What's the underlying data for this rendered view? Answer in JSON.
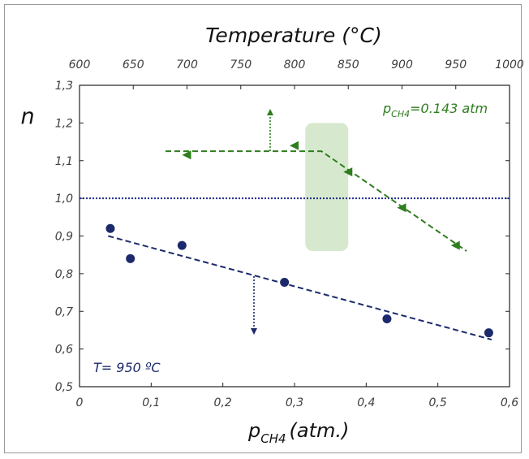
{
  "chart_data": {
    "type": "scatter",
    "top_axis": {
      "label": "Temperature (°C)",
      "ticks": [
        600,
        650,
        700,
        750,
        800,
        850,
        900,
        950,
        1000
      ],
      "range": [
        600,
        1000
      ]
    },
    "bottom_axis": {
      "label_main": "p",
      "label_sub": "CH4",
      "label_rest": "(atm.)",
      "ticks": [
        "0",
        "0,1",
        "0,2",
        "0,3",
        "0,4",
        "0,5",
        "0,6"
      ],
      "tick_values": [
        0,
        0.1,
        0.2,
        0.3,
        0.4,
        0.5,
        0.6
      ],
      "range": [
        0,
        0.6
      ]
    },
    "y_axis": {
      "label": "n",
      "ticks": [
        "0,5",
        "0,6",
        "0,7",
        "0,8",
        "0,9",
        "1,0",
        "1,1",
        "1,2",
        "1,3"
      ],
      "tick_values": [
        0.5,
        0.6,
        0.7,
        0.8,
        0.9,
        1.0,
        1.1,
        1.2,
        1.3
      ],
      "range": [
        0.5,
        1.3
      ]
    },
    "reference_line": {
      "y": 1.0,
      "color": "#1f2a8a"
    },
    "series": [
      {
        "name": "T= 950 ºC",
        "axis": "bottom",
        "color": "#1c2a6b",
        "points": [
          {
            "x": 0.043,
            "y": 0.92
          },
          {
            "x": 0.071,
            "y": 0.84
          },
          {
            "x": 0.143,
            "y": 0.875
          },
          {
            "x": 0.286,
            "y": 0.777
          },
          {
            "x": 0.429,
            "y": 0.68
          },
          {
            "x": 0.571,
            "y": 0.643
          }
        ],
        "fit": [
          {
            "x": 0.04,
            "y": 0.9
          },
          {
            "x": 0.575,
            "y": 0.625
          }
        ]
      },
      {
        "name_main": "p",
        "name_sub": "CH4",
        "name_rest": "=0.143 atm",
        "axis": "top",
        "color": "#2e7d1e",
        "points": [
          {
            "x": 700,
            "y": 1.115
          },
          {
            "x": 800,
            "y": 1.14
          },
          {
            "x": 850,
            "y": 1.07
          },
          {
            "x": 900,
            "y": 0.975
          },
          {
            "x": 950,
            "y": 0.875
          }
        ],
        "fit": [
          {
            "x": 680,
            "y": 1.125
          },
          {
            "x": 825,
            "y": 1.125
          },
          {
            "x": 960,
            "y": 0.86
          }
        ]
      }
    ],
    "transition_region": {
      "temperature_range": [
        810,
        850
      ],
      "n_range": [
        0.86,
        1.2
      ],
      "color": "#cfe5c6"
    },
    "annotations": {
      "temp_label": "T= 950 ºC"
    },
    "grid": false
  }
}
